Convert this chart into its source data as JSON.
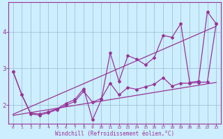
{
  "background_color": "#cceeff",
  "grid_color": "#99bbcc",
  "line_color": "#993399",
  "xlabel": "Windchill (Refroidissement éolien,°C)",
  "xlim": [
    -0.5,
    23.5
  ],
  "ylim": [
    1.5,
    4.8
  ],
  "xticks": [
    0,
    1,
    2,
    3,
    4,
    5,
    6,
    7,
    8,
    9,
    10,
    11,
    12,
    13,
    14,
    15,
    16,
    17,
    18,
    19,
    20,
    21,
    22,
    23
  ],
  "yticks": [
    2,
    3,
    4
  ],
  "line1_x": [
    0,
    1,
    2,
    3,
    4,
    5,
    6,
    7,
    8,
    9,
    10,
    11,
    12,
    13,
    14,
    15,
    16,
    17,
    18,
    19,
    20,
    21,
    22,
    23
  ],
  "line1_y": [
    2.92,
    2.28,
    1.78,
    1.76,
    1.82,
    1.9,
    2.05,
    2.15,
    2.45,
    1.6,
    2.15,
    3.42,
    2.65,
    3.35,
    3.25,
    3.1,
    3.3,
    3.9,
    3.85,
    4.22,
    2.62,
    2.65,
    4.55,
    4.22
  ],
  "line2_x": [
    0,
    1,
    2,
    3,
    4,
    5,
    6,
    7,
    8,
    9,
    10,
    11,
    12,
    13,
    14,
    15,
    16,
    17,
    18,
    19,
    20,
    21,
    22,
    23
  ],
  "line2_y": [
    2.92,
    2.28,
    1.76,
    1.73,
    1.79,
    1.88,
    2.0,
    2.1,
    2.38,
    2.08,
    2.18,
    2.6,
    2.28,
    2.48,
    2.43,
    2.5,
    2.57,
    2.75,
    2.52,
    2.6,
    2.6,
    2.62,
    2.63,
    4.22
  ],
  "trend1_x": [
    0,
    23
  ],
  "trend1_y": [
    1.75,
    4.15
  ],
  "trend2_x": [
    0,
    23
  ],
  "trend2_y": [
    1.72,
    2.62
  ]
}
